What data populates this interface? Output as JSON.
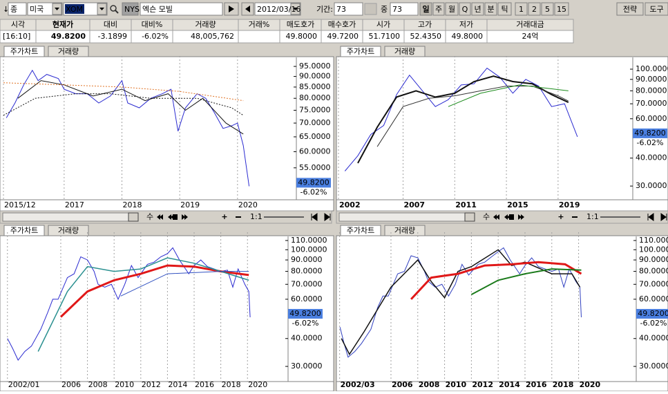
{
  "toolbar": {
    "items": [
      "↓",
      "종",
      "미국",
      "XOM",
      "NYSE",
      "엑슨 모빌",
      "2012/03/16",
      "기간:",
      "73",
      "중",
      "73",
      "일",
      "주",
      "월",
      "Q",
      "년",
      "분",
      "틱",
      "1",
      "2",
      "5",
      "15",
      "전략",
      "도구"
    ]
  },
  "quote": {
    "columns": [
      {
        "header": "시각",
        "value": "[16:10]"
      },
      {
        "header": "현재가",
        "value": "49.8200"
      },
      {
        "header": "대비",
        "value": "-3.1899"
      },
      {
        "header": "대비%",
        "value": "-6.02%"
      },
      {
        "header": "거래량",
        "value": "48,005,762"
      },
      {
        "header": "거래%"
      },
      {
        "header": "매도호가",
        "value": "49.8000"
      },
      {
        "header": "매수호가",
        "value": "49.7200"
      },
      {
        "header": "시가",
        "value": "51.7100"
      },
      {
        "header": "고가",
        "value": "52.4350"
      },
      {
        "header": "저가",
        "value": "49.8000"
      },
      {
        "header": "거래대금",
        "value": "24억"
      }
    ]
  },
  "scroll_controls": {
    "speed": "수",
    "ratio": "1:1"
  },
  "chart_data": [
    {
      "type": "line",
      "tabs": [
        "주가차트",
        "거래량"
      ],
      "log_scale": true,
      "grid": true,
      "xlim": [
        2015.95,
        2021.03
      ],
      "ylim": [
        47,
        99
      ],
      "xticks": [
        {
          "value": 2015.95,
          "label": "2015/12"
        },
        2017,
        2018,
        2019,
        2020
      ],
      "yticks": [
        {
          "value": 95,
          "label": "95.0000"
        },
        {
          "value": 90,
          "label": "90.0000"
        },
        {
          "value": 85,
          "label": "85.0000"
        },
        {
          "value": 80,
          "label": "80.0000"
        },
        {
          "value": 75,
          "label": "75.0000"
        },
        {
          "value": 70,
          "label": "70.0000"
        },
        {
          "value": 65,
          "label": "65.0000"
        },
        {
          "value": 60,
          "label": "60.0000"
        },
        {
          "value": 55,
          "label": "55.0000"
        }
      ],
      "last_price": {
        "value": 49.82,
        "label": "49.8200"
      },
      "change_label": "-6.02%",
      "series": [
        {
          "color": "#2a2ad0",
          "x": [
            2016.0,
            2016.15,
            2016.3,
            2016.45,
            2016.55,
            2016.7,
            2016.9,
            2017.0,
            2017.2,
            2017.4,
            2017.6,
            2017.8,
            2018.0,
            2018.1,
            2018.3,
            2018.5,
            2018.7,
            2018.85,
            2018.97,
            2019.1,
            2019.3,
            2019.45,
            2019.6,
            2019.75,
            2019.9,
            2020.0,
            2020.1,
            2020.2
          ],
          "values": [
            72,
            78,
            86,
            93,
            88,
            91,
            89,
            84,
            82,
            82,
            78,
            81,
            88,
            78,
            76,
            80,
            82,
            84,
            67,
            76,
            82,
            80,
            74,
            68,
            69,
            70,
            62,
            49.82
          ]
        },
        {
          "color": "#111111",
          "x": [
            2016.2,
            2016.6,
            2017.0,
            2017.5,
            2018.0,
            2018.4,
            2018.8,
            2019.1,
            2019.4,
            2019.8,
            2020.1
          ],
          "values": [
            80,
            88,
            86,
            81,
            84,
            79,
            82,
            75,
            80,
            70,
            66
          ]
        },
        {
          "color": "#111111",
          "dash": true,
          "x": [
            2015.95,
            2016.5,
            2017.2,
            2017.8,
            2018.5,
            2019.3,
            2019.9,
            2020.1
          ],
          "values": [
            73,
            80,
            82,
            82,
            80,
            80,
            76,
            73
          ]
        },
        {
          "color": "#e07020",
          "dash": true,
          "x": [
            2015.95,
            2017,
            2018,
            2019,
            2020.1
          ],
          "values": [
            87,
            86,
            85,
            83,
            79
          ]
        }
      ]
    },
    {
      "type": "line",
      "tabs": [
        "주가차트",
        "거래량"
      ],
      "log_scale": true,
      "grid": true,
      "bold_x": true,
      "xlim": [
        2001.84,
        2024.73
      ],
      "ylim": [
        26.8,
        111.3
      ],
      "xticks": [
        2002,
        2007,
        2011,
        2015,
        2019
      ],
      "yticks": [
        {
          "value": 100,
          "label": "100.0000"
        },
        {
          "value": 90,
          "label": "90.0000"
        },
        {
          "value": 80,
          "label": "80.0000"
        },
        {
          "value": 70,
          "label": "70.0000"
        },
        {
          "value": 60,
          "label": "60.0000"
        },
        {
          "value": 40,
          "label": "40.0000"
        },
        {
          "value": 30,
          "label": "30.0000"
        }
      ],
      "last_price": {
        "value": 49.82,
        "label": "49.8200"
      },
      "change_label": "-6.02%",
      "series": [
        {
          "color": "#2a2ad0",
          "x": [
            2002.5,
            2003.5,
            2004.5,
            2005.5,
            2006.5,
            2007.5,
            2008.5,
            2009.5,
            2010.5,
            2011.5,
            2012.5,
            2013.5,
            2014.5,
            2015.5,
            2016.5,
            2017.5,
            2018.5,
            2019.5,
            2020.5
          ],
          "values": [
            35,
            41,
            51,
            56,
            77,
            94,
            80,
            68,
            73,
            85,
            86,
            101,
            92,
            78,
            90,
            84,
            68,
            70,
            49.82
          ]
        },
        {
          "color": "#111111",
          "width": 2,
          "x": [
            2003.5,
            2005,
            2006.5,
            2008,
            2009.5,
            2011,
            2012.5,
            2014,
            2015.5,
            2017,
            2018.5,
            2019.8
          ],
          "values": [
            38,
            55,
            75,
            80,
            75,
            78,
            88,
            93,
            88,
            86,
            77,
            71
          ]
        },
        {
          "color": "#333333",
          "x": [
            2005,
            2007,
            2009,
            2011,
            2013,
            2015,
            2017,
            2019,
            2019.8
          ],
          "values": [
            45,
            68,
            74,
            76,
            80,
            84,
            84,
            76,
            72
          ]
        },
        {
          "color": "#1a8a1a",
          "x": [
            2010.5,
            2013,
            2016,
            2019.8
          ],
          "values": [
            68,
            78,
            85,
            80
          ]
        }
      ]
    },
    {
      "type": "line",
      "tabs": [
        "주가차트",
        "거래량"
      ],
      "log_scale": true,
      "grid": true,
      "xlim": [
        2001.65,
        2022.94
      ],
      "ylim": [
        26.4,
        116.4
      ],
      "xticks": [
        {
          "value": 2002,
          "label": "2002/01"
        },
        2006,
        2008,
        2010,
        2012,
        2014,
        2016,
        2018,
        2020
      ],
      "yticks": [
        {
          "value": 110,
          "label": "110.0000"
        },
        {
          "value": 100,
          "label": "100.0000"
        },
        {
          "value": 90,
          "label": "90.0000"
        },
        {
          "value": 80,
          "label": "80.0000"
        },
        {
          "value": 70,
          "label": "70.0000"
        },
        {
          "value": 60,
          "label": "60.0000"
        },
        {
          "value": 40,
          "label": "40.0000"
        },
        {
          "value": 30,
          "label": "30.0000"
        }
      ],
      "last_price": {
        "value": 49.82,
        "label": "49.8200"
      },
      "change_label": "-6.02%",
      "series": [
        {
          "color": "#2a2ad0",
          "x": [
            2002.0,
            2002.4,
            2002.8,
            2003.3,
            2003.8,
            2004.5,
            2005.0,
            2005.4,
            2005.8,
            2006.5,
            2007.0,
            2007.5,
            2008.0,
            2008.5,
            2008.8,
            2009.3,
            2009.8,
            2010.3,
            2010.8,
            2011.3,
            2011.8,
            2012.5,
            2013.0,
            2013.5,
            2014.0,
            2014.4,
            2014.9,
            2015.6,
            2016.0,
            2016.5,
            2017.0,
            2017.5,
            2018.0,
            2018.5,
            2018.9,
            2019.3,
            2019.8,
            2020.1,
            2020.2
          ],
          "values": [
            40,
            36,
            32,
            35,
            37,
            44,
            52,
            60,
            60,
            75,
            78,
            93,
            90,
            80,
            70,
            68,
            70,
            60,
            70,
            85,
            75,
            86,
            88,
            93,
            96,
            102,
            90,
            78,
            85,
            90,
            84,
            82,
            80,
            81,
            68,
            82,
            70,
            65,
            49.82
          ]
        },
        {
          "color": "#e01818",
          "width": 3,
          "x": [
            2006,
            2008,
            2010,
            2012,
            2014,
            2016,
            2018,
            2020.1
          ],
          "values": [
            50,
            65,
            73,
            78,
            85,
            84,
            80,
            77
          ]
        },
        {
          "color": "#2a9090",
          "width": 1.5,
          "x": [
            2004.3,
            2006.5,
            2008,
            2010,
            2012,
            2014,
            2016,
            2018,
            2020.1
          ],
          "values": [
            35,
            65,
            84,
            80,
            82,
            92,
            87,
            80,
            73
          ]
        },
        {
          "color": "#3050c0",
          "x": [
            2010.5,
            2014,
            2018,
            2020.1
          ],
          "values": [
            62,
            78,
            80,
            80
          ]
        }
      ]
    },
    {
      "type": "line",
      "tabs": [
        "주가차트",
        "거래량"
      ],
      "log_scale": true,
      "grid": true,
      "bold_x": true,
      "xlim": [
        2001.93,
        2023.99
      ],
      "ylim": [
        26.4,
        116.4
      ],
      "xticks": [
        {
          "value": 2002.17,
          "label": "2002/03"
        },
        2006,
        2008,
        2010,
        2012,
        2014,
        2016,
        2018,
        2020
      ],
      "yticks": [
        {
          "value": 110,
          "label": "110.0000"
        },
        {
          "value": 100,
          "label": "100.0000"
        },
        {
          "value": 90,
          "label": "90.0000"
        },
        {
          "value": 80,
          "label": "80.0000"
        },
        {
          "value": 70,
          "label": "70.0000"
        },
        {
          "value": 60,
          "label": "60.0000"
        },
        {
          "value": 40,
          "label": "40.0000"
        },
        {
          "value": 30,
          "label": "30.0000"
        }
      ],
      "last_price": {
        "value": 49.82,
        "label": "49.8200"
      },
      "change_label": "-6.02%",
      "series": [
        {
          "color": "#3040c0",
          "x": [
            2002.2,
            2002.5,
            2002.8,
            2003.3,
            2003.8,
            2004.5,
            2005.0,
            2005.4,
            2005.8,
            2006.5,
            2007.0,
            2007.5,
            2008.0,
            2008.5,
            2008.8,
            2009.3,
            2009.8,
            2010.3,
            2010.8,
            2011.3,
            2011.8,
            2012.5,
            2013.0,
            2013.5,
            2014.0,
            2014.4,
            2014.9,
            2015.6,
            2016.0,
            2016.5,
            2017.0,
            2017.5,
            2018.0,
            2018.5,
            2018.9,
            2019.3,
            2019.8,
            2020.1,
            2020.2
          ],
          "values": [
            45,
            38,
            33,
            35,
            38,
            44,
            55,
            62,
            62,
            78,
            80,
            94,
            92,
            80,
            72,
            68,
            70,
            62,
            70,
            86,
            77,
            86,
            88,
            93,
            98,
            102,
            90,
            78,
            85,
            92,
            84,
            82,
            80,
            82,
            68,
            82,
            72,
            68,
            49.82
          ]
        },
        {
          "color": "#111111",
          "width": 1.5,
          "x": [
            2002.3,
            2002.9,
            2004,
            2006,
            2008,
            2009,
            2010,
            2011,
            2012,
            2014,
            2015,
            2016,
            2018,
            2019.5,
            2020.1
          ],
          "values": [
            40,
            34,
            43,
            68,
            90,
            72,
            61,
            80,
            84,
            100,
            85,
            88,
            78,
            78,
            68
          ]
        },
        {
          "color": "#e01818",
          "width": 3,
          "x": [
            2007.5,
            2009,
            2011,
            2013,
            2015,
            2017,
            2019,
            2020.2
          ],
          "values": [
            60,
            75,
            78,
            85,
            86,
            88,
            86,
            78
          ]
        },
        {
          "color": "#1a7a1a",
          "width": 2,
          "x": [
            2012,
            2014,
            2016,
            2018,
            2020.2
          ],
          "values": [
            63,
            73,
            78,
            82,
            81
          ]
        }
      ]
    }
  ]
}
